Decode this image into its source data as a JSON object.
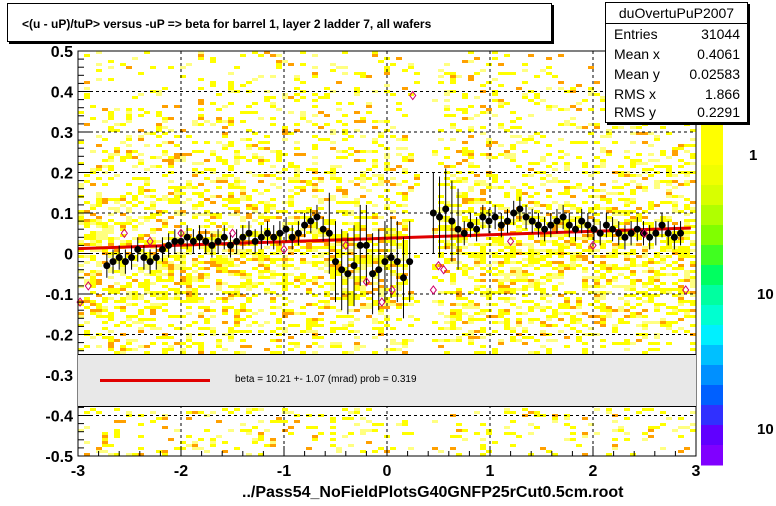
{
  "title": "<(u - uP)/tuP> versus  -uP => beta for barrel 1, layer 2 ladder 7, all wafers",
  "stats": {
    "name": "duOvertuPuP2007",
    "rows": [
      {
        "key": "Entries",
        "value": "31044"
      },
      {
        "key": "Mean x",
        "value": "0.4061"
      },
      {
        "key": "Mean y",
        "value": "0.02583"
      },
      {
        "key": "RMS x",
        "value": "1.866"
      },
      {
        "key": "RMS y",
        "value": "0.2291"
      }
    ]
  },
  "fit_legend": "beta =   10.21 +-  1.07 (mrad) prob = 0.319",
  "footer": "../Pass54_NoFieldPlotsG40GNFP25rCut0.5cm.root",
  "palette_labels": [
    "1",
    "10",
    "10"
  ],
  "colors": {
    "fit": "#e00000",
    "profile": "#000000",
    "open_markers": "#d0006a"
  },
  "chart_data": {
    "type": "scatter",
    "xlim": [
      -3,
      3
    ],
    "ylim": [
      -0.5,
      0.5
    ],
    "x_ticks": [
      "-3",
      "-2",
      "-1",
      "0",
      "1",
      "2",
      "3"
    ],
    "y_ticks": [
      "-0.5",
      "-0.4",
      "-0.3",
      "-0.2",
      "-0.1",
      "0",
      "0.1",
      "0.2",
      "0.3",
      "0.4",
      "0.5"
    ],
    "grid": true,
    "fit_line": {
      "x": [
        -3,
        2.95
      ],
      "y": [
        0.012,
        0.063
      ]
    },
    "profile": {
      "x": [
        -2.72,
        -2.66,
        -2.6,
        -2.54,
        -2.48,
        -2.42,
        -2.36,
        -2.3,
        -2.24,
        -2.18,
        -2.12,
        -2.06,
        -2.0,
        -1.94,
        -1.88,
        -1.82,
        -1.76,
        -1.7,
        -1.64,
        -1.58,
        -1.52,
        -1.46,
        -1.4,
        -1.34,
        -1.28,
        -1.22,
        -1.16,
        -1.1,
        -1.04,
        -0.98,
        -0.92,
        -0.86,
        -0.8,
        -0.74,
        -0.68,
        -0.62,
        -0.56,
        -0.5,
        -0.44,
        -0.38,
        -0.32,
        -0.26,
        -0.2,
        -0.14,
        -0.08,
        -0.02,
        0.04,
        0.1,
        0.16,
        0.22,
        0.45,
        0.51,
        0.57,
        0.63,
        0.69,
        0.75,
        0.81,
        0.87,
        0.93,
        0.99,
        1.05,
        1.11,
        1.17,
        1.23,
        1.29,
        1.35,
        1.41,
        1.47,
        1.53,
        1.59,
        1.65,
        1.71,
        1.77,
        1.83,
        1.89,
        1.95,
        2.01,
        2.07,
        2.13,
        2.19,
        2.25,
        2.31,
        2.37,
        2.43,
        2.49,
        2.55,
        2.61,
        2.67,
        2.73,
        2.79,
        2.85
      ],
      "y": [
        -0.03,
        -0.02,
        -0.01,
        -0.02,
        -0.01,
        0.01,
        -0.01,
        -0.02,
        -0.01,
        0.01,
        0.02,
        0.03,
        0.03,
        0.04,
        0.03,
        0.04,
        0.03,
        0.02,
        0.03,
        0.04,
        0.02,
        0.03,
        0.04,
        0.05,
        0.03,
        0.04,
        0.05,
        0.04,
        0.05,
        0.06,
        0.04,
        0.05,
        0.07,
        0.08,
        0.09,
        0.06,
        0.05,
        -0.02,
        -0.04,
        -0.05,
        -0.03,
        0.02,
        0.02,
        -0.05,
        -0.04,
        -0.02,
        -0.01,
        -0.02,
        -0.06,
        -0.02,
        0.1,
        0.09,
        0.11,
        0.08,
        0.06,
        0.05,
        0.07,
        0.06,
        0.09,
        0.08,
        0.09,
        0.07,
        0.08,
        0.1,
        0.11,
        0.09,
        0.08,
        0.07,
        0.06,
        0.07,
        0.08,
        0.09,
        0.07,
        0.06,
        0.08,
        0.07,
        0.06,
        0.05,
        0.07,
        0.06,
        0.05,
        0.04,
        0.05,
        0.06,
        0.05,
        0.04,
        0.05,
        0.07,
        0.05,
        0.04,
        0.05
      ]
    },
    "open_markers": {
      "x": [
        -2.98,
        -2.9,
        -2.55,
        -2.3,
        -2.0,
        -1.5,
        -1.0,
        -0.4,
        -0.2,
        -0.05,
        0.05,
        0.25,
        0.45,
        0.5,
        0.55,
        1.2,
        2.0,
        2.5,
        2.9
      ],
      "y": [
        -0.12,
        -0.08,
        0.05,
        0.03,
        0.05,
        0.05,
        0.01,
        0.02,
        -0.07,
        -0.12,
        -0.09,
        0.39,
        -0.09,
        -0.03,
        -0.04,
        0.03,
        0.02,
        0.05,
        -0.09
      ]
    }
  }
}
